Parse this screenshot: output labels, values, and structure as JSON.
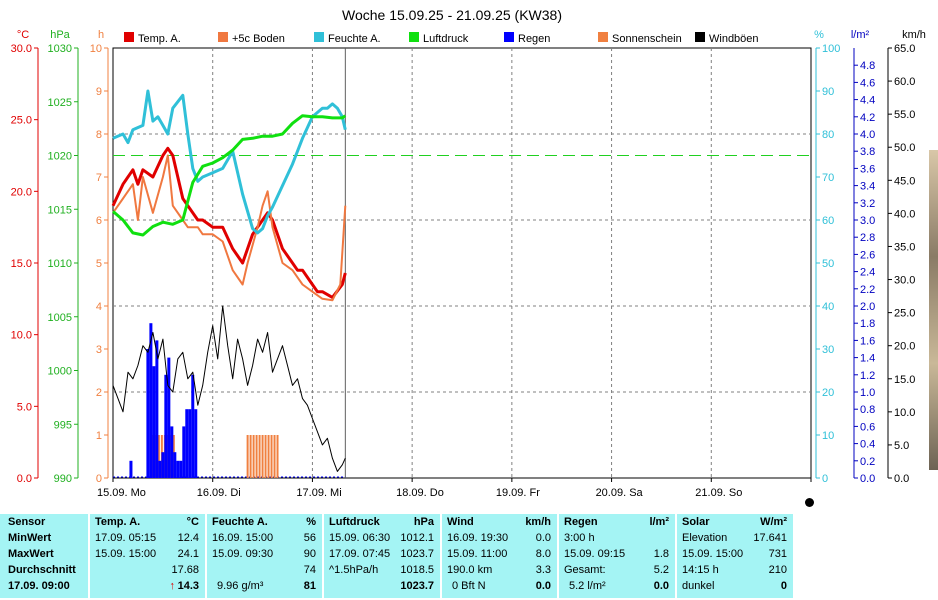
{
  "window": {
    "title": "Woche 15.09.25 - 21.09.25 (KW38)"
  },
  "colors": {
    "temp": "#e00000",
    "boden": "#f07840",
    "feuchte": "#30c0d8",
    "luftdruck": "#10e010",
    "regen": "#0000ff",
    "sonnenschein": "#f08040",
    "windboeen": "#000000",
    "axis_temp": "#e00000",
    "axis_hpa": "#20b020",
    "axis_h": "#f08040",
    "axis_pct": "#30c0d8",
    "axis_lm2": "#0000c0",
    "panel_bg": "#a4f4f4"
  },
  "axes_units": {
    "temp": "°C",
    "hpa": "hPa",
    "h": "h",
    "pct": "%",
    "lm2": "l/m²",
    "kmh": "km/h"
  },
  "legend": [
    {
      "label": "Temp. A.",
      "color": "#e00000"
    },
    {
      "label": "+5c Boden",
      "color": "#f07840"
    },
    {
      "label": "Feuchte A.",
      "color": "#30c0d8"
    },
    {
      "label": "Luftdruck",
      "color": "#10e010"
    },
    {
      "label": "Regen",
      "color": "#0000ff"
    },
    {
      "label": "Sonnenschein",
      "color": "#f08040"
    },
    {
      "label": "Windböen",
      "color": "#000000"
    }
  ],
  "chart_data": {
    "type": "line",
    "title": "Woche 15.09.25 - 21.09.25 (KW38)",
    "x_days": [
      "15.09. Mo",
      "16.09. Di",
      "17.09. Mi",
      "18.09. Do",
      "19.09. Fr",
      "20.09. Sa",
      "21.09. So"
    ],
    "x_range_days": [
      0,
      7
    ],
    "now_marker_day": 2.33,
    "axes": {
      "temp_c": {
        "ticks": [
          "0.0",
          "5.0",
          "10.0",
          "15.0",
          "20.0",
          "25.0",
          "30.0"
        ],
        "range": [
          0,
          30
        ]
      },
      "pressure_hpa": {
        "ticks": [
          "990",
          "995",
          "1000",
          "1005",
          "1010",
          "1015",
          "1020",
          "1025",
          "1030"
        ],
        "range": [
          990,
          1030
        ]
      },
      "hours_h": {
        "ticks": [
          "0",
          "1",
          "2",
          "3",
          "4",
          "5",
          "6",
          "7",
          "8",
          "9",
          "10"
        ],
        "range": [
          0,
          10
        ]
      },
      "humidity_pct": {
        "ticks": [
          "0",
          "10",
          "20",
          "30",
          "40",
          "50",
          "60",
          "70",
          "80",
          "90",
          "100"
        ],
        "range": [
          0,
          100
        ]
      },
      "rain_lm2": {
        "ticks": [
          "0.0",
          "0.2",
          "0.4",
          "0.6",
          "0.8",
          "1.0",
          "1.2",
          "1.4",
          "1.6",
          "1.8",
          "2.0",
          "2.2",
          "2.4",
          "2.6",
          "2.8",
          "3.0",
          "3.2",
          "3.4",
          "3.6",
          "3.8",
          "4.0",
          "4.2",
          "4.4",
          "4.6",
          "4.8"
        ],
        "range": [
          0,
          5
        ]
      },
      "wind_kmh": {
        "ticks": [
          "0.0",
          "5.0",
          "10.0",
          "15.0",
          "20.0",
          "25.0",
          "30.0",
          "35.0",
          "40.0",
          "45.0",
          "50.0",
          "55.0",
          "60.0",
          "65.0"
        ],
        "range": [
          0,
          65
        ]
      }
    },
    "reference_line_pressure_hpa": 1020,
    "series": [
      {
        "name": "Temp. A.",
        "axis": "temp_c",
        "x": [
          0.0,
          0.1,
          0.2,
          0.25,
          0.3,
          0.4,
          0.5,
          0.55,
          0.6,
          0.7,
          0.75,
          0.85,
          0.9,
          1.0,
          1.1,
          1.2,
          1.3,
          1.4,
          1.5,
          1.55,
          1.6,
          1.7,
          1.8,
          1.85,
          1.9,
          2.0,
          2.05,
          2.1,
          2.2,
          2.3,
          2.33
        ],
        "y": [
          19.0,
          20.5,
          21.5,
          20.5,
          21.5,
          21.0,
          22.5,
          23.0,
          22.5,
          19.5,
          19.0,
          18.0,
          18.0,
          17.5,
          17.5,
          16.0,
          15.0,
          17.0,
          18.0,
          18.5,
          18.0,
          16.0,
          15.0,
          14.5,
          14.5,
          13.5,
          13.0,
          13.0,
          12.6,
          13.5,
          14.3
        ]
      },
      {
        "name": "+5c Boden",
        "axis": "temp_c",
        "x": [
          0.0,
          0.1,
          0.2,
          0.25,
          0.3,
          0.4,
          0.5,
          0.55,
          0.6,
          0.7,
          0.75,
          0.85,
          0.9,
          1.0,
          1.1,
          1.2,
          1.3,
          1.35,
          1.45,
          1.5,
          1.55,
          1.6,
          1.7,
          1.8,
          1.9,
          2.0,
          2.1,
          2.2,
          2.28,
          2.33
        ],
        "y": [
          18.5,
          19.5,
          20.5,
          18.0,
          21.0,
          18.5,
          21.0,
          22.5,
          19.0,
          18.0,
          17.5,
          17.5,
          17.0,
          17.0,
          16.5,
          14.5,
          13.5,
          15.0,
          17.5,
          19.0,
          20.0,
          17.5,
          15.0,
          14.5,
          13.5,
          13.0,
          12.5,
          12.4,
          13.5,
          19.0
        ]
      },
      {
        "name": "Feuchte A.",
        "axis": "humidity_pct",
        "x": [
          0.0,
          0.1,
          0.15,
          0.2,
          0.3,
          0.35,
          0.4,
          0.45,
          0.5,
          0.55,
          0.6,
          0.7,
          0.75,
          0.8,
          0.85,
          0.9,
          1.0,
          1.1,
          1.2,
          1.3,
          1.4,
          1.45,
          1.5,
          1.55,
          1.6,
          1.7,
          1.8,
          1.9,
          2.0,
          2.1,
          2.15,
          2.2,
          2.25,
          2.3,
          2.33
        ],
        "y": [
          79,
          80,
          78,
          81,
          82,
          90,
          83,
          84,
          82,
          80,
          86,
          89,
          80,
          72,
          69,
          70,
          71,
          72,
          76,
          66,
          58,
          57,
          58,
          61,
          63,
          68,
          73,
          79,
          84,
          86,
          86,
          87,
          86,
          84,
          81
        ]
      },
      {
        "name": "Luftdruck",
        "axis": "pressure_hpa",
        "x": [
          0.0,
          0.1,
          0.2,
          0.3,
          0.4,
          0.5,
          0.6,
          0.7,
          0.8,
          0.9,
          1.0,
          1.1,
          1.2,
          1.3,
          1.4,
          1.5,
          1.6,
          1.7,
          1.8,
          1.9,
          2.0,
          2.1,
          2.2,
          2.3,
          2.33
        ],
        "y": [
          1014.8,
          1014.0,
          1012.8,
          1012.6,
          1013.4,
          1013.8,
          1013.6,
          1014.0,
          1017.5,
          1019.0,
          1019.3,
          1019.8,
          1020.5,
          1021.5,
          1021.6,
          1021.8,
          1021.8,
          1022.0,
          1023.0,
          1023.7,
          1023.6,
          1023.6,
          1023.5,
          1023.5,
          1023.7
        ]
      },
      {
        "name": "Windböen",
        "axis": "wind_kmh",
        "x": [
          0.0,
          0.05,
          0.1,
          0.15,
          0.2,
          0.25,
          0.3,
          0.35,
          0.4,
          0.45,
          0.5,
          0.55,
          0.6,
          0.65,
          0.7,
          0.75,
          0.8,
          0.85,
          0.9,
          0.95,
          1.0,
          1.05,
          1.1,
          1.15,
          1.2,
          1.25,
          1.3,
          1.35,
          1.4,
          1.45,
          1.5,
          1.55,
          1.6,
          1.65,
          1.7,
          1.75,
          1.8,
          1.85,
          1.9,
          1.95,
          2.0,
          2.05,
          2.1,
          2.15,
          2.2,
          2.25,
          2.3,
          2.33
        ],
        "y": [
          14,
          12,
          10,
          16,
          15,
          17,
          20,
          19,
          22,
          18,
          21,
          14,
          13,
          18,
          19,
          15,
          16,
          11,
          14,
          19,
          23,
          18,
          26,
          20,
          15,
          21,
          18,
          14,
          17,
          21,
          19,
          22,
          16,
          18,
          20,
          17,
          14,
          15,
          12,
          11,
          9,
          7,
          5,
          6,
          3,
          1,
          2,
          3
        ]
      },
      {
        "name": "Sonnenschein",
        "axis": "hours_h",
        "kind": "bars",
        "x": [
          0.4,
          0.43,
          0.46,
          0.49,
          0.52,
          0.55,
          0.58,
          0.61,
          1.35,
          1.38,
          1.41,
          1.44,
          1.47,
          1.5,
          1.53,
          1.56,
          1.59,
          1.62,
          1.65
        ],
        "y": [
          1.0,
          1.0,
          1.0,
          1.0,
          1.0,
          1.0,
          1.0,
          1.0,
          1.0,
          1.0,
          1.0,
          1.0,
          1.0,
          1.0,
          1.0,
          1.0,
          1.0,
          1.0,
          1.0
        ]
      },
      {
        "name": "Regen",
        "axis": "rain_lm2",
        "kind": "bars",
        "x": [
          0.18,
          0.35,
          0.38,
          0.41,
          0.44,
          0.47,
          0.5,
          0.53,
          0.56,
          0.59,
          0.62,
          0.65,
          0.68,
          0.71,
          0.74,
          0.77,
          0.8,
          0.83
        ],
        "y": [
          0.2,
          1.5,
          1.8,
          1.3,
          1.6,
          0.2,
          0.3,
          1.2,
          1.4,
          0.6,
          0.3,
          0.2,
          0.2,
          0.6,
          0.8,
          0.8,
          1.2,
          0.8
        ]
      }
    ]
  },
  "summary": {
    "sensor": {
      "header": "Sensor",
      "rows": [
        "MinWert",
        "MaxWert",
        "Durchschnitt",
        "17.09. 09:00"
      ]
    },
    "temp": {
      "header": "Temp. A.",
      "unit": "°C",
      "rows": [
        [
          "17.09.  05:15",
          "12.4"
        ],
        [
          "15.09.  15:00",
          "24.1"
        ],
        [
          "",
          "17.68"
        ]
      ],
      "current": "14.3",
      "current_arrow": "↑"
    },
    "feuchte": {
      "header": "Feuchte A.",
      "unit": "%",
      "rows": [
        [
          "16.09.  15:00",
          "56"
        ],
        [
          "15.09.  09:30",
          "90"
        ],
        [
          "",
          "74"
        ]
      ],
      "current_extra": "9.96 g/m³",
      "current": "81"
    },
    "luftdruck": {
      "header": "Luftdruck",
      "unit": "hPa",
      "rows": [
        [
          "15.09.  06:30",
          "1012.1"
        ],
        [
          "17.09.  07:45",
          "1023.7"
        ],
        [
          "^1.5hPa/h",
          "1018.5"
        ]
      ],
      "current": "1023.7"
    },
    "wind": {
      "header": "Wind",
      "unit": "km/h",
      "rows": [
        [
          "16.09.  19:30",
          "0.0"
        ],
        [
          "15.09.  11:00",
          "8.0"
        ],
        [
          "190.0 km",
          "3.3"
        ]
      ],
      "current_extra": "0 Bft N",
      "current": "0.0"
    },
    "regen": {
      "header": "Regen",
      "unit": "l/m²",
      "rows": [
        [
          "3:00 h",
          ""
        ],
        [
          "15.09.  09:15",
          "1.8"
        ],
        [
          "Gesamt:",
          "5.2"
        ]
      ],
      "current_extra": "5.2 l/m²",
      "current": "0.0"
    },
    "solar": {
      "header": "Solar",
      "unit": "W/m²",
      "rows": [
        [
          "Elevation",
          "17.641"
        ],
        [
          "15.09.  15:00",
          "731"
        ],
        [
          "14:15 h",
          "210"
        ]
      ],
      "current_extra": "dunkel",
      "current": "0"
    }
  }
}
